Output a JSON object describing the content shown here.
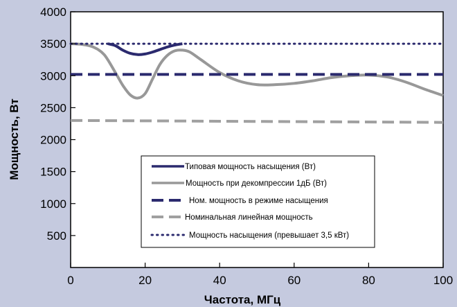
{
  "chart_data": {
    "type": "line",
    "title": "",
    "xlabel": "Частота, МГц",
    "ylabel": "Мощность, Вт",
    "xlim": [
      0,
      100
    ],
    "ylim": [
      0,
      4000
    ],
    "xticks": [
      "0",
      "20",
      "40",
      "60",
      "80",
      "100"
    ],
    "yticks": [
      "500",
      "1000",
      "1500",
      "2000",
      "2500",
      "3000",
      "3500",
      "4000"
    ],
    "grid": false,
    "legend_position": "center",
    "series": [
      {
        "name": "Типовая мощность насыщения (Вт)",
        "style": "solid",
        "color": "#2b2a6e",
        "x": [
          10,
          12,
          14,
          16,
          18,
          20,
          22,
          24,
          26,
          28,
          30
        ],
        "y": [
          3500,
          3470,
          3400,
          3350,
          3330,
          3340,
          3370,
          3410,
          3450,
          3480,
          3500
        ]
      },
      {
        "name": "Мощность при декомпрессии 1дБ  (Вт)",
        "style": "solid",
        "color": "#989898",
        "x": [
          0,
          3,
          6,
          9,
          12,
          14,
          16,
          18,
          20,
          22,
          24,
          26,
          28,
          30,
          32,
          35,
          40,
          45,
          50,
          55,
          60,
          65,
          70,
          75,
          80,
          85,
          90,
          95,
          100
        ],
        "y": [
          3500,
          3490,
          3450,
          3330,
          3050,
          2850,
          2700,
          2650,
          2720,
          2950,
          3180,
          3320,
          3390,
          3400,
          3370,
          3250,
          3050,
          2920,
          2860,
          2860,
          2880,
          2920,
          2970,
          3000,
          3010,
          2980,
          2900,
          2790,
          2690
        ]
      },
      {
        "name": "Ном. мощность в режиме насыщения",
        "style": "dashed",
        "color": "#2b2a6e",
        "x": [
          0,
          100
        ],
        "y": [
          3020,
          3020
        ]
      },
      {
        "name": "Номинальная линейная мощность",
        "style": "dashed",
        "color": "#a0a0a0",
        "x": [
          0,
          100
        ],
        "y": [
          2300,
          2270
        ]
      },
      {
        "name": "Мощность насыщения (превышает 3,5 кВт)",
        "style": "dotted",
        "color": "#2b2a6e",
        "x": [
          0,
          100
        ],
        "y": [
          3500,
          3500
        ]
      }
    ]
  },
  "colors": {
    "background": "#c5cadf",
    "plot_area": "#ffffff",
    "navy": "#2b2a6e",
    "gray": "#989898"
  }
}
